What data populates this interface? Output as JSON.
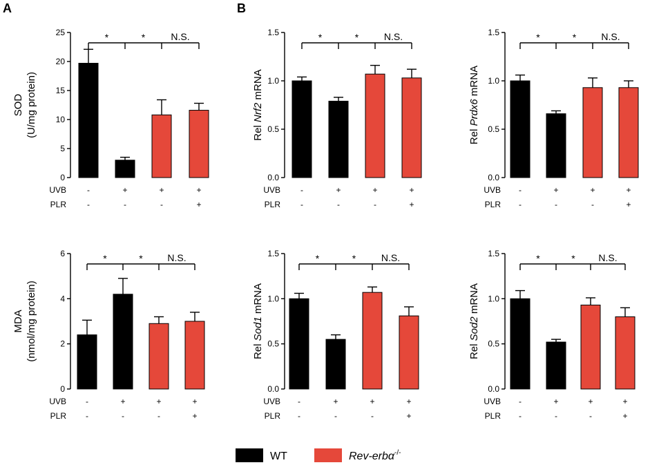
{
  "panel_labels": {
    "a": "A",
    "b": "B"
  },
  "colors": {
    "wt": "#000000",
    "rev": "#e5483a",
    "axis": "#000000"
  },
  "legend": {
    "wt": "WT",
    "rev_prefix": "Rev-erb",
    "rev_greek": "α",
    "rev_sup": "-/-"
  },
  "conditions": {
    "uvb_label": "UVB",
    "plr_label": "PLR",
    "uvb": [
      "-",
      "+",
      "+",
      "+"
    ],
    "plr": [
      "-",
      "-",
      "-",
      "+"
    ]
  },
  "chart_data": [
    {
      "id": "sod",
      "type": "bar",
      "ylabel_line1": "SOD",
      "ylabel_line2": "(U/mg protein)",
      "ylim": [
        0,
        25
      ],
      "yticks": [
        0,
        5,
        10,
        15,
        20,
        25
      ],
      "tick_labels": [
        "0",
        "5",
        "10",
        "15",
        "20",
        "25"
      ],
      "groups": [
        "wt",
        "wt",
        "rev",
        "rev"
      ],
      "values": [
        19.7,
        3.0,
        10.8,
        11.6
      ],
      "errors": [
        2.4,
        0.5,
        2.6,
        1.2
      ],
      "sig": [
        "*",
        "*",
        "N.S."
      ]
    },
    {
      "id": "nrf2",
      "type": "bar",
      "ylabel_pre": "Rel ",
      "ylabel_gene": "Nrf2",
      "ylabel_post": " mRNA",
      "ylim": [
        0,
        1.5
      ],
      "yticks": [
        0,
        0.5,
        1.0,
        1.5
      ],
      "tick_labels": [
        "0.0",
        "0.5",
        "1.0",
        "1.5"
      ],
      "groups": [
        "wt",
        "wt",
        "rev",
        "rev"
      ],
      "values": [
        1.0,
        0.79,
        1.07,
        1.03
      ],
      "errors": [
        0.04,
        0.04,
        0.09,
        0.09
      ],
      "sig": [
        "*",
        "*",
        "N.S."
      ]
    },
    {
      "id": "prdx6",
      "type": "bar",
      "ylabel_pre": "Rel ",
      "ylabel_gene": "Prdx6",
      "ylabel_post": " mRNA",
      "ylim": [
        0,
        1.5
      ],
      "yticks": [
        0,
        0.5,
        1.0,
        1.5
      ],
      "tick_labels": [
        "0.0",
        "0.5",
        "1.0",
        "1.5"
      ],
      "groups": [
        "wt",
        "wt",
        "rev",
        "rev"
      ],
      "values": [
        1.0,
        0.66,
        0.93,
        0.93
      ],
      "errors": [
        0.06,
        0.03,
        0.1,
        0.07
      ],
      "sig": [
        "*",
        "*",
        "N.S."
      ]
    },
    {
      "id": "mda",
      "type": "bar",
      "ylabel_line1": "MDA",
      "ylabel_line2": "(nmol/mg protein)",
      "ylim": [
        0,
        6
      ],
      "yticks": [
        0,
        2,
        4,
        6
      ],
      "tick_labels": [
        "0",
        "2",
        "4",
        "6"
      ],
      "groups": [
        "wt",
        "wt",
        "rev",
        "rev"
      ],
      "values": [
        2.4,
        4.2,
        2.9,
        3.0
      ],
      "errors": [
        0.65,
        0.7,
        0.3,
        0.4
      ],
      "sig": [
        "*",
        "*",
        "N.S."
      ]
    },
    {
      "id": "sod1",
      "type": "bar",
      "ylabel_pre": "Rel ",
      "ylabel_gene": "Sod1",
      "ylabel_post": " mRNA",
      "ylim": [
        0,
        1.5
      ],
      "yticks": [
        0,
        0.5,
        1.0,
        1.5
      ],
      "tick_labels": [
        "0.0",
        "0.5",
        "1.0",
        "1.5"
      ],
      "groups": [
        "wt",
        "wt",
        "rev",
        "rev"
      ],
      "values": [
        1.0,
        0.55,
        1.07,
        0.81
      ],
      "errors": [
        0.06,
        0.05,
        0.06,
        0.1
      ],
      "sig": [
        "*",
        "*",
        "N.S."
      ]
    },
    {
      "id": "sod2",
      "type": "bar",
      "ylabel_pre": "Rel ",
      "ylabel_gene": "Sod2",
      "ylabel_post": " mRNA",
      "ylim": [
        0,
        1.5
      ],
      "yticks": [
        0,
        0.5,
        1.0,
        1.5
      ],
      "tick_labels": [
        "0.0",
        "0.5",
        "1.0",
        "1.5"
      ],
      "groups": [
        "wt",
        "wt",
        "rev",
        "rev"
      ],
      "values": [
        1.0,
        0.52,
        0.93,
        0.8
      ],
      "errors": [
        0.09,
        0.03,
        0.08,
        0.1
      ],
      "sig": [
        "*",
        "*",
        "N.S."
      ]
    }
  ]
}
